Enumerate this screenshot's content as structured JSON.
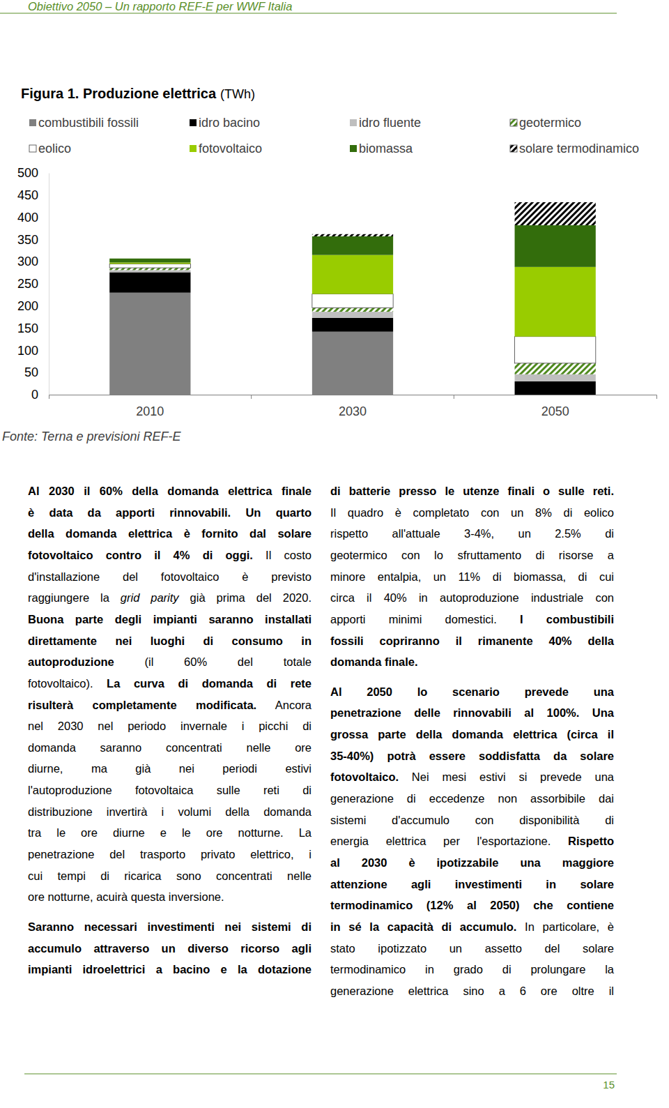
{
  "header": "Obiettivo 2050 – Un rapporto REF-E per WWF Italia",
  "chart_data": {
    "type": "bar",
    "title": "Figura 1. Produzione elettrica",
    "subtitle": "(TWh)",
    "categories": [
      "2010",
      "2030",
      "2050"
    ],
    "series": [
      {
        "name": "combustibili fossili",
        "color": "#808080",
        "values": [
          230,
          142,
          0
        ]
      },
      {
        "name": "idro bacino",
        "color": "#000000",
        "values": [
          46,
          31,
          30
        ]
      },
      {
        "name": "idro fluente",
        "color": "#bfbfbf",
        "values": [
          5,
          14,
          16
        ]
      },
      {
        "name": "geotermico",
        "color": "#4f8a1f",
        "line_style": "hatch",
        "values": [
          5,
          9,
          25
        ]
      },
      {
        "name": "eolico",
        "color": "#ffffff",
        "values": [
          9,
          31,
          60
        ]
      },
      {
        "name": "fotovoltaico",
        "color": "#99cc00",
        "values": [
          3,
          88,
          157
        ]
      },
      {
        "name": "biomassa",
        "color": "#336d0c",
        "values": [
          9,
          42,
          94
        ]
      },
      {
        "name": "solare termodinamico",
        "color": "#000000",
        "line_style": "hatch",
        "values": [
          0,
          5,
          52
        ]
      }
    ],
    "ylim": [
      0,
      500
    ],
    "yticks": [
      0,
      50,
      100,
      150,
      200,
      250,
      300,
      350,
      400,
      450,
      500
    ],
    "stacked": true,
    "grid": false,
    "legend": "top"
  },
  "source": "Fonte: Terna e previsioni REF-E",
  "text": {
    "left": [
      [
        [
          {
            "text": "Al 2030 il 60% della domanda elettrica finale",
            "style": "bold"
          }
        ],
        [
          {
            "text": "è data da apporti rinnovabili. Un quarto",
            "style": "bold"
          }
        ],
        [
          {
            "text": "della domanda elettrica è fornito dal solare",
            "style": "bold"
          }
        ],
        [
          {
            "text": "fotovoltaico contro il 4% di oggi.",
            "style": "bold"
          },
          {
            "text": " Il costo",
            "style": "normal"
          }
        ],
        [
          {
            "text": "d'installazione del fotovoltaico è previsto",
            "style": "normal"
          }
        ],
        [
          {
            "text": "raggiungere la ",
            "style": "normal"
          },
          {
            "text": "grid parity",
            "style": "italic"
          },
          {
            "text": " già prima del 2020.",
            "style": "normal"
          }
        ],
        [
          {
            "text": "Buona parte degli impianti saranno installati",
            "style": "bold"
          }
        ],
        [
          {
            "text": "direttamente nei luoghi di consumo in",
            "style": "bold"
          }
        ],
        [
          {
            "text": "autoproduzione",
            "style": "bold"
          },
          {
            "text": " (il 60% del totale",
            "style": "normal"
          }
        ],
        [
          {
            "text": "fotovoltaico).",
            "style": "normal"
          },
          {
            "text": " La curva di domanda di rete",
            "style": "bold"
          }
        ],
        [
          {
            "text": "risulterà completamente modificata.",
            "style": "bold"
          },
          {
            "text": " Ancora",
            "style": "normal"
          }
        ],
        [
          {
            "text": "nel 2030 nel periodo invernale i picchi di",
            "style": "normal"
          }
        ],
        [
          {
            "text": "domanda saranno concentrati nelle ore",
            "style": "normal"
          }
        ],
        [
          {
            "text": "diurne, ma già nei periodi estivi",
            "style": "normal"
          }
        ],
        [
          {
            "text": "l'autoproduzione fotovoltaica sulle reti di",
            "style": "normal"
          }
        ],
        [
          {
            "text": "distribuzione invertirà i volumi della domanda",
            "style": "normal"
          }
        ],
        [
          {
            "text": "tra le ore diurne e le ore notturne. La",
            "style": "normal"
          }
        ],
        [
          {
            "text": "penetrazione del trasporto privato elettrico, i",
            "style": "normal"
          }
        ],
        [
          {
            "text": "cui tempi di ricarica sono concentrati nelle",
            "style": "normal"
          }
        ],
        [
          {
            "text": "ore notturne, acuirà questa inversione.",
            "style": "normal"
          }
        ]
      ],
      [
        [
          {
            "text": "Saranno necessari investimenti nei sistemi di",
            "style": "bold"
          }
        ],
        [
          {
            "text": "accumulo attraverso un diverso ricorso agli",
            "style": "bold"
          }
        ],
        [
          {
            "text": "impianti idroelettrici a bacino e la dotazione",
            "style": "bold"
          }
        ]
      ]
    ],
    "right": [
      [
        [
          {
            "text": "di batterie presso le utenze finali o sulle reti.",
            "style": "bold"
          }
        ],
        [
          {
            "text": "Il quadro è completato con un 8% di eolico",
            "style": "normal"
          }
        ],
        [
          {
            "text": "rispetto all'attuale 3-4%, un 2.5% di",
            "style": "normal"
          }
        ],
        [
          {
            "text": "geotermico con lo sfruttamento di risorse a",
            "style": "normal"
          }
        ],
        [
          {
            "text": "minore entalpia, un 11% di biomassa, di cui",
            "style": "normal"
          }
        ],
        [
          {
            "text": "circa il 40% in autoproduzione industriale con",
            "style": "normal"
          }
        ],
        [
          {
            "text": "apporti minimi domestici.",
            "style": "normal"
          },
          {
            "text": " I combustibili",
            "style": "bold"
          }
        ],
        [
          {
            "text": "fossili copriranno il rimanente 40% della",
            "style": "bold"
          }
        ],
        [
          {
            "text": "domanda finale.",
            "style": "bold"
          }
        ]
      ],
      [
        [
          {
            "text": "Al 2050 lo scenario prevede una",
            "style": "bold"
          }
        ],
        [
          {
            "text": "penetrazione delle rinnovabili al 100%. Una",
            "style": "bold"
          }
        ],
        [
          {
            "text": "grossa parte della domanda elettrica (circa il",
            "style": "bold"
          }
        ],
        [
          {
            "text": "35-40%) potrà essere soddisfatta da solare",
            "style": "bold"
          }
        ],
        [
          {
            "text": "fotovoltaico.",
            "style": "bold"
          },
          {
            "text": " Nei mesi estivi si prevede una",
            "style": "normal"
          }
        ],
        [
          {
            "text": "generazione di eccedenze non assorbibile dai",
            "style": "normal"
          }
        ],
        [
          {
            "text": "sistemi d'accumulo con disponibilità di",
            "style": "normal"
          }
        ],
        [
          {
            "text": "energia elettrica per l'esportazione.",
            "style": "normal"
          },
          {
            "text": " Rispetto",
            "style": "bold"
          }
        ],
        [
          {
            "text": "al 2030 è ipotizzabile una maggiore",
            "style": "bold"
          }
        ],
        [
          {
            "text": "attenzione agli investimenti in solare",
            "style": "bold"
          }
        ],
        [
          {
            "text": "termodinamico (12% al 2050) che contiene",
            "style": "bold"
          }
        ],
        [
          {
            "text": "in sé la capacità di accumulo.",
            "style": "bold"
          },
          {
            "text": " In particolare, è",
            "style": "normal"
          }
        ],
        [
          {
            "text": "stato ipotizzato un assetto del solare",
            "style": "normal"
          }
        ],
        [
          {
            "text": "termodinamico in grado di prolungare la",
            "style": "normal"
          }
        ],
        [
          {
            "text": "generazione elettrica sino a 6 ore oltre il",
            "style": "normal"
          }
        ]
      ]
    ]
  },
  "page_number": "15"
}
